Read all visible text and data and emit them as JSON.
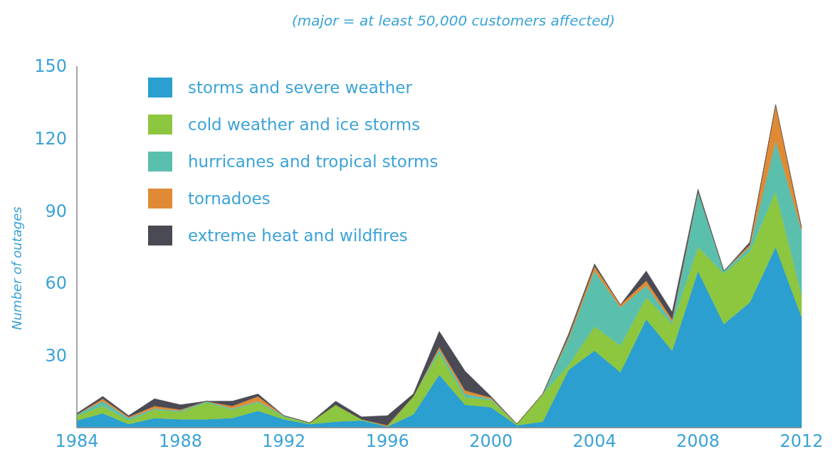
{
  "chart_data": {
    "type": "area",
    "stacked": true,
    "subtitle": "(major = at least 50,000 customers affected)",
    "ylabel": "Number of outages",
    "x": [
      1984,
      1985,
      1986,
      1987,
      1988,
      1989,
      1990,
      1991,
      1992,
      1993,
      1994,
      1995,
      1996,
      1997,
      1998,
      1999,
      2000,
      2001,
      2002,
      2003,
      2004,
      2005,
      2006,
      2007,
      2008,
      2009,
      2010,
      2011,
      2012
    ],
    "xlim": [
      1984,
      2012
    ],
    "xticks": [
      1984,
      1988,
      1992,
      1996,
      2000,
      2004,
      2008,
      2012
    ],
    "ylim": [
      0,
      150
    ],
    "yticks": [
      30,
      60,
      90,
      120,
      150
    ],
    "grid": false,
    "legend": "top left",
    "series": [
      {
        "name": "storms and severe weather",
        "color": "#2a9fd0",
        "values": [
          3,
          6,
          1.5,
          4,
          3.5,
          3.5,
          4,
          7,
          3.5,
          1.5,
          2.5,
          3,
          0.5,
          5.5,
          22,
          9.5,
          8.5,
          1,
          2.5,
          24,
          32,
          23,
          45,
          32,
          65,
          43,
          52,
          75,
          46
        ]
      },
      {
        "name": "cold weather and ice storms",
        "color": "#8dc63f",
        "values": [
          2,
          3,
          1.5,
          3.5,
          3,
          7,
          3.5,
          3.5,
          1,
          0.5,
          7,
          0.5,
          0,
          7.5,
          9,
          3,
          3,
          0.5,
          11.5,
          2,
          10,
          11,
          9,
          11,
          10,
          21,
          21,
          23,
          9
        ]
      },
      {
        "name": "hurricanes and tropical storms",
        "color": "#5bbfad",
        "values": [
          0.5,
          2,
          1,
          0.5,
          0.5,
          0.5,
          0.5,
          0.5,
          0.5,
          0,
          0,
          0,
          0,
          0,
          1.5,
          1.5,
          0.5,
          0,
          0,
          11,
          23,
          16,
          5,
          1,
          23,
          1,
          2,
          21,
          27
        ]
      },
      {
        "name": "tornadoes",
        "color": "#e08a35",
        "values": [
          0,
          1,
          0.5,
          1,
          0.5,
          0,
          1,
          2,
          0,
          0,
          0,
          0,
          0.5,
          0,
          1,
          1.5,
          0.5,
          0,
          0,
          1,
          2,
          1,
          2,
          1,
          0,
          0,
          1,
          15,
          1
        ]
      },
      {
        "name": "extreme heat and wildfires",
        "color": "#4a4a55",
        "values": [
          0.5,
          1,
          0.5,
          3,
          2,
          0,
          2,
          1,
          0,
          0,
          1.5,
          1,
          4,
          1,
          6.5,
          8,
          0.5,
          0,
          0,
          1,
          1,
          0,
          4,
          3,
          1,
          0,
          1,
          0,
          0
        ]
      }
    ]
  }
}
